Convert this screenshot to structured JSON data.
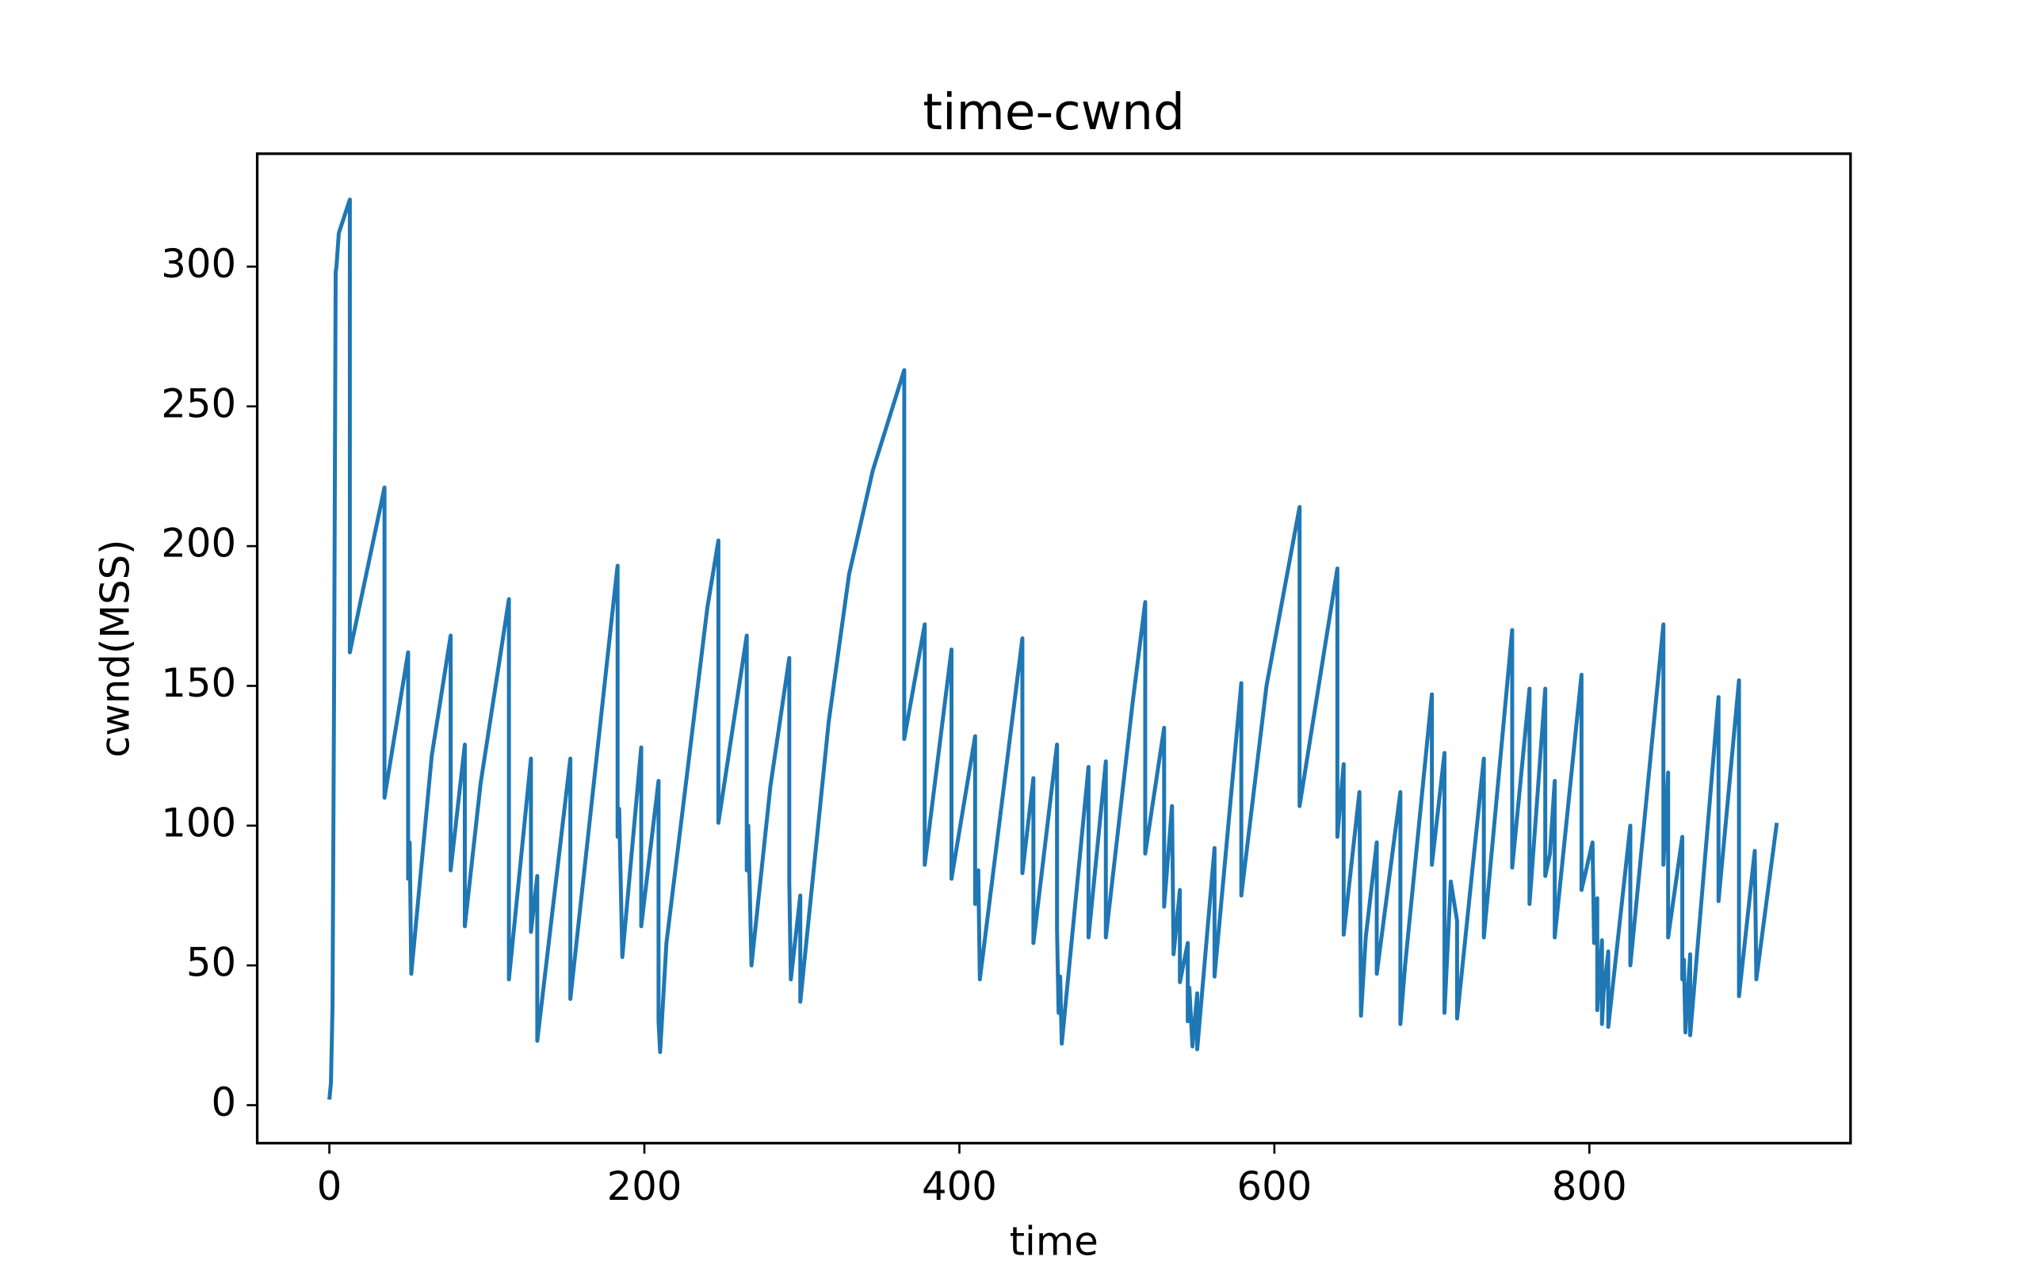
{
  "chart_data": {
    "type": "line",
    "title": "time-cwnd",
    "x_label": "time",
    "y_label": "cwnd(MSS)",
    "color": "#1f77b4",
    "xlim": [
      -45.8,
      965.8
    ],
    "ylim": [
      -13.6,
      340.4
    ],
    "xticks": [
      0,
      200,
      400,
      600,
      800
    ],
    "yticks": [
      0,
      50,
      100,
      150,
      200,
      250,
      300
    ],
    "x": [
      0,
      1,
      2,
      3,
      4,
      4.5,
      6,
      13,
      13,
      35,
      35,
      50,
      50,
      51,
      52,
      65,
      77,
      77,
      86,
      86,
      96,
      114,
      114,
      128,
      128,
      132,
      132,
      153,
      153,
      181,
      183,
      183,
      184,
      186,
      198,
      198,
      209,
      209,
      210,
      214,
      240,
      247,
      247,
      265,
      265,
      266,
      268,
      280,
      292,
      292,
      293,
      299,
      299,
      317,
      330,
      345,
      365,
      365,
      378,
      378,
      395,
      395,
      410,
      410,
      412,
      413,
      440,
      440,
      447,
      447,
      462,
      462,
      463,
      464,
      465,
      482,
      482,
      493,
      493,
      510,
      518,
      518,
      530,
      530,
      535,
      536,
      540,
      540,
      545,
      545,
      546,
      548,
      551,
      551,
      562,
      562,
      579,
      579,
      595,
      616,
      616,
      640,
      640,
      644,
      644,
      654,
      655,
      658,
      665,
      665,
      680,
      680,
      683,
      700,
      700,
      708,
      708,
      712,
      716,
      716,
      733,
      733,
      751,
      751,
      762,
      762,
      772,
      772,
      775,
      778,
      778,
      795,
      795,
      802,
      803,
      805,
      805,
      808,
      808,
      809,
      812,
      812,
      826,
      826,
      847,
      847,
      850,
      850,
      859,
      859,
      860,
      861,
      864,
      864,
      882,
      882,
      895,
      895,
      905,
      906,
      919
    ],
    "values": [
      2,
      8,
      35,
      150,
      298,
      300,
      312,
      324,
      162,
      221,
      110,
      162,
      81,
      94,
      47,
      125,
      168,
      84,
      129,
      64,
      115,
      181,
      45,
      124,
      62,
      82,
      23,
      124,
      38,
      183,
      193,
      96,
      106,
      53,
      128,
      64,
      116,
      30,
      19,
      58,
      178,
      202,
      101,
      168,
      84,
      100,
      50,
      114,
      160,
      80,
      45,
      75,
      37,
      137,
      190,
      227,
      263,
      131,
      172,
      86,
      163,
      81,
      132,
      72,
      84,
      45,
      167,
      83,
      117,
      58,
      129,
      63,
      33,
      46,
      22,
      121,
      60,
      123,
      60,
      144,
      180,
      90,
      135,
      71,
      107,
      54,
      77,
      44,
      58,
      30,
      42,
      21,
      40,
      20,
      92,
      46,
      151,
      75,
      150,
      214,
      107,
      192,
      96,
      122,
      61,
      112,
      32,
      60,
      94,
      47,
      112,
      29,
      50,
      147,
      86,
      126,
      33,
      80,
      66,
      31,
      124,
      60,
      170,
      85,
      149,
      72,
      149,
      82,
      90,
      116,
      60,
      154,
      77,
      94,
      58,
      74,
      34,
      59,
      29,
      40,
      55,
      28,
      100,
      50,
      172,
      86,
      119,
      60,
      96,
      45,
      52,
      26,
      54,
      25,
      146,
      73,
      152,
      39,
      91,
      45,
      101
    ]
  }
}
